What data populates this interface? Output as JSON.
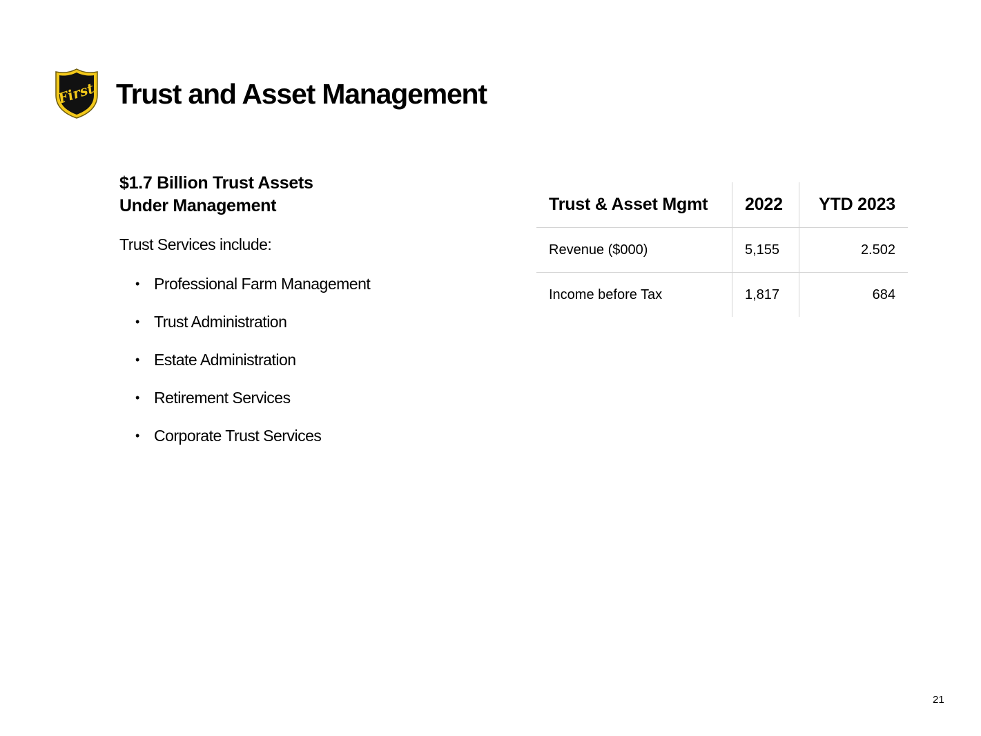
{
  "header": {
    "title": "Trust and Asset Management",
    "logo_text": "First"
  },
  "left": {
    "headline_line1": "$1.7 Billion Trust Assets",
    "headline_line2": "Under Management",
    "intro": "Trust Services include:",
    "bullet_symbol": "•",
    "services": [
      "Professional Farm Management",
      "Trust Administration",
      "Estate Administration",
      "Retirement Services",
      "Corporate Trust Services"
    ]
  },
  "table": {
    "headers": [
      "Trust & Asset Mgmt",
      "2022",
      "YTD 2023"
    ],
    "rows": [
      [
        "Revenue ($000)",
        "5,155",
        "2.502"
      ],
      [
        "Income before Tax",
        "1,817",
        "684"
      ]
    ]
  },
  "footer": {
    "page_number": "21"
  },
  "colors": {
    "logo_gold": "#f2c81a",
    "logo_black": "#111111",
    "rule_gray": "#d4d4d4"
  }
}
